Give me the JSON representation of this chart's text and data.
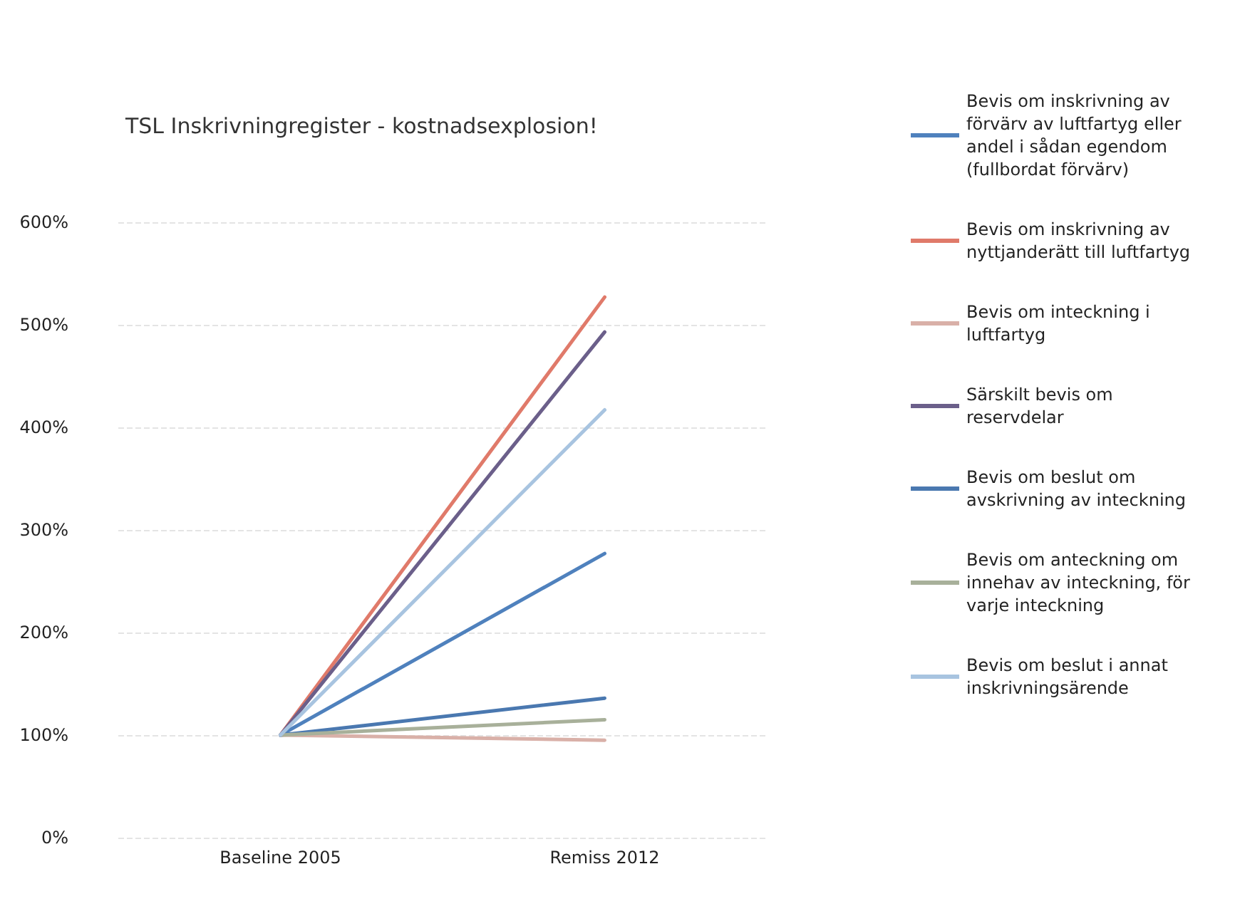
{
  "chart_data": {
    "type": "line",
    "title": "TSL Inskrivningregister - kostnadsexplosion!",
    "categories": [
      "Baseline 2005",
      "Remiss 2012"
    ],
    "series": [
      {
        "name": "Bevis om inskrivning av förvärv av luftfartyg eller andel i sådan egendom (fullbordat förvärv)",
        "color": "#4f81bd",
        "values": [
          100,
          277
        ]
      },
      {
        "name": "Bevis om inskrivning av nyttjanderätt till luftfartyg",
        "color": "#e07a6a",
        "values": [
          100,
          527
        ]
      },
      {
        "name": "Bevis om inteckning i luftfartyg",
        "color": "#d9b0a8",
        "values": [
          100,
          95
        ]
      },
      {
        "name": "Särskilt bevis om reservdelar",
        "color": "#6b5f8a",
        "values": [
          100,
          493
        ]
      },
      {
        "name": "Bevis om beslut om avskrivning av inteckning",
        "color": "#4a78b0",
        "values": [
          100,
          136
        ]
      },
      {
        "name": "Bevis om anteckning om innehav av inteckning, för varje inteckning",
        "color": "#a8b09a",
        "values": [
          100,
          115
        ]
      },
      {
        "name": "Bevis om beslut i annat inskrivningsärende",
        "color": "#a8c4e0",
        "values": [
          100,
          417
        ]
      }
    ],
    "ylim": [
      0,
      600
    ],
    "yticks": [
      {
        "value": 0,
        "label": "0%"
      },
      {
        "value": 100,
        "label": "100%"
      },
      {
        "value": 200,
        "label": "200%"
      },
      {
        "value": 300,
        "label": "300%"
      },
      {
        "value": 400,
        "label": "400%"
      },
      {
        "value": 500,
        "label": "500%"
      },
      {
        "value": 600,
        "label": "600%"
      }
    ],
    "grid": "y",
    "legend": "right",
    "marker": "none",
    "line_style": "solid"
  }
}
